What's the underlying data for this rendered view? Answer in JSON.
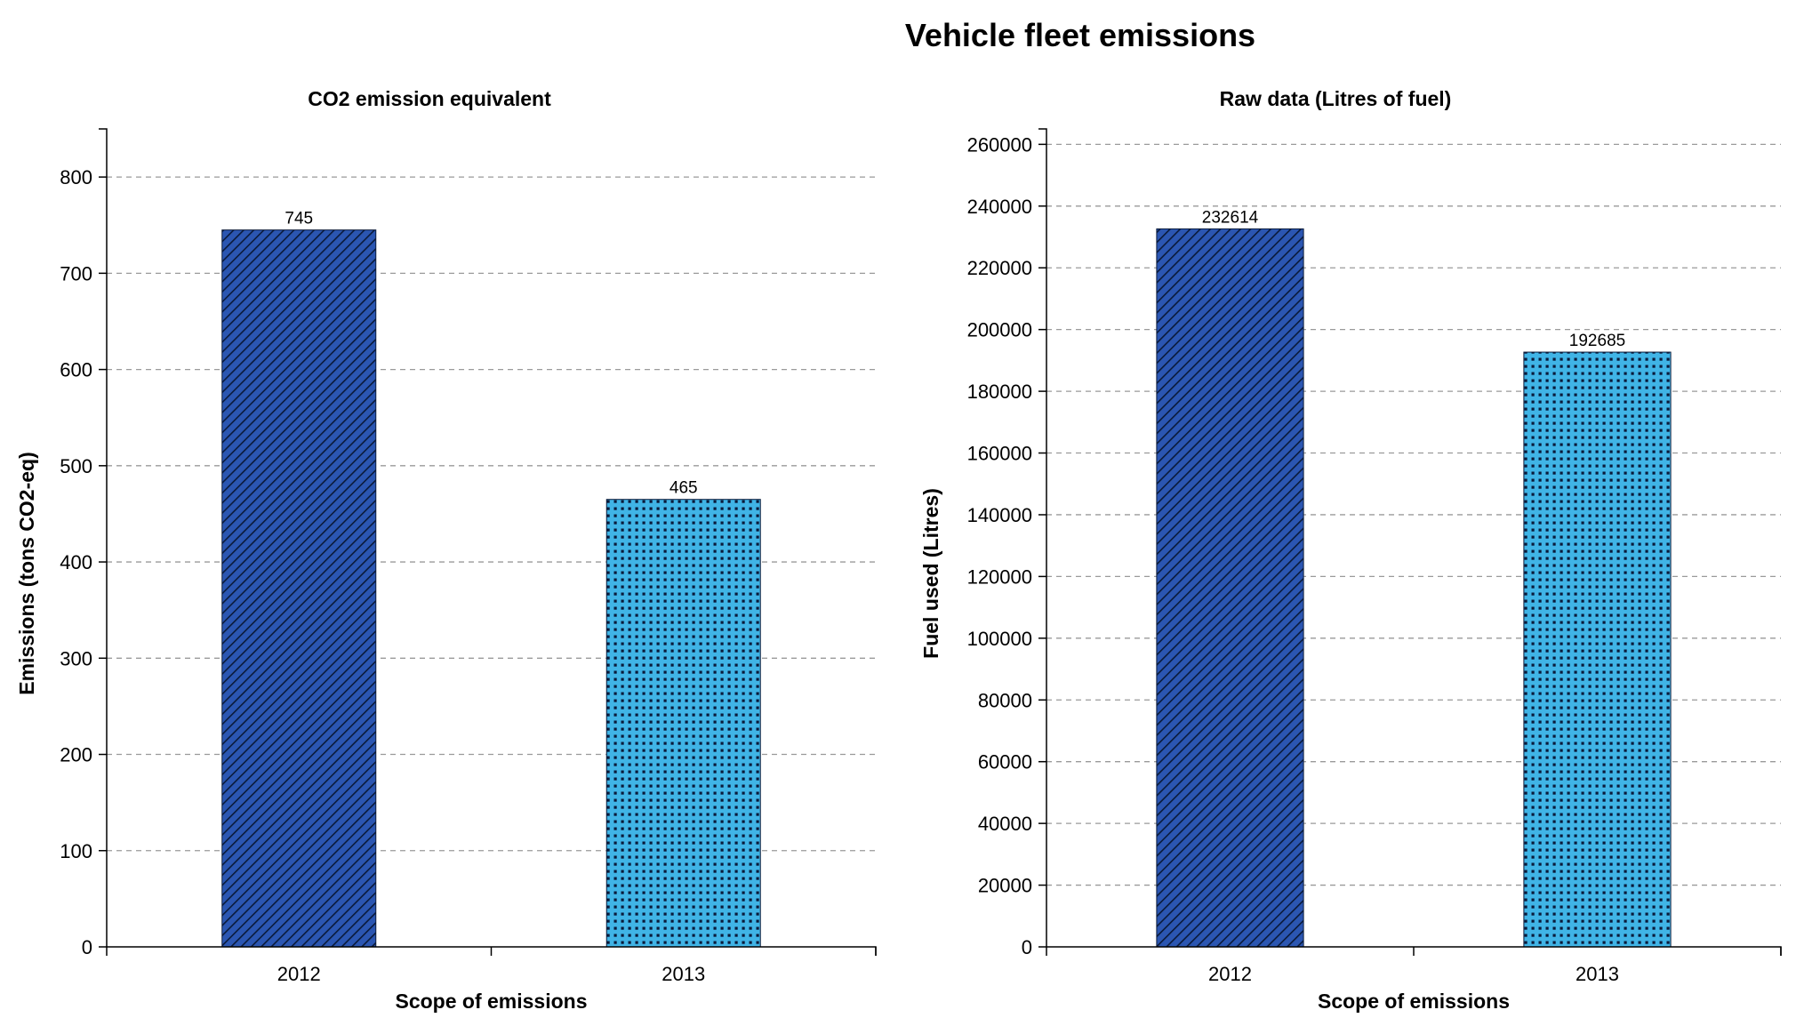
{
  "title": "Vehicle fleet emissions",
  "colors": {
    "bar_2012_fill": "#2b56b2",
    "bar_2012_pattern": "#0a1a3a",
    "bar_2013_fill": "#40b4e6",
    "bar_2013_pattern": "#0a1a3a",
    "grid": "#9a9a9a"
  },
  "chart_data": [
    {
      "type": "bar",
      "title": "CO2 emission equivalent",
      "xlabel": "Scope of emissions",
      "ylabel": "Emissions (tons CO2-eq)",
      "categories": [
        "2012",
        "2013"
      ],
      "values": [
        745,
        465
      ],
      "patterns": [
        "hatch",
        "dots"
      ],
      "ylim": [
        0,
        850
      ],
      "yticks": [
        0,
        100,
        200,
        300,
        400,
        500,
        600,
        700,
        800
      ],
      "grid": true
    },
    {
      "type": "bar",
      "title": "Raw data (Litres of fuel)",
      "xlabel": "Scope of emissions",
      "ylabel": "Fuel used (Litres)",
      "categories": [
        "2012",
        "2013"
      ],
      "values": [
        232614,
        192685
      ],
      "patterns": [
        "hatch",
        "dots"
      ],
      "ylim": [
        0,
        265000
      ],
      "yticks": [
        0,
        20000,
        40000,
        60000,
        80000,
        100000,
        120000,
        140000,
        160000,
        180000,
        200000,
        220000,
        240000,
        260000
      ],
      "grid": true
    }
  ]
}
